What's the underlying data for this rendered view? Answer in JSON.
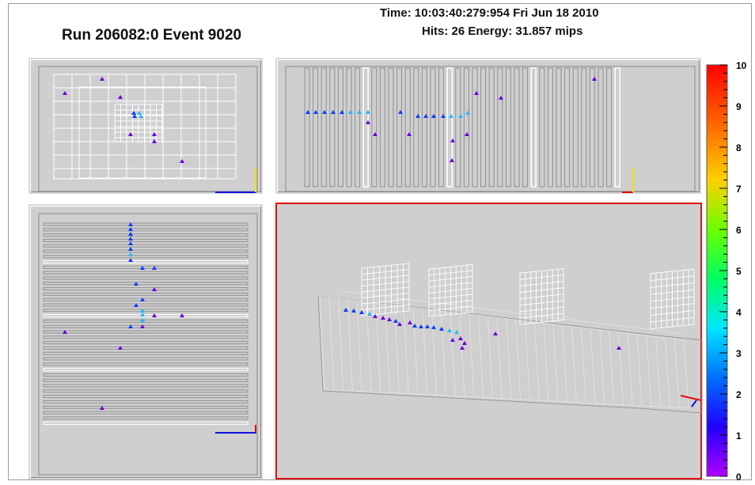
{
  "header": {
    "run_event": "Run 206082:0 Event 9020",
    "time": "Time: 10:03:40:279:954 Fri Jun 18 2010",
    "hits_energy": "Hits: 26  Energy: 31.857 mips"
  },
  "colors": {
    "panel_bg": "#cfcfcf",
    "grid": "#ffffff",
    "selected_border": "#dd1111",
    "hit_low": "#6a00d8",
    "hit_mid": "#0a3cff",
    "hit_high": "#22b8ff",
    "axis_x": "#1010e0",
    "axis_y": "#f2e200",
    "axis_z": "#e01010"
  },
  "views": {
    "front": {
      "hits": [
        [
          127,
          98,
          "violet"
        ],
        [
          80,
          116,
          "violet"
        ],
        [
          150,
          121,
          "violet"
        ],
        [
          167,
          141,
          "blue"
        ],
        [
          174,
          141,
          "cyan"
        ],
        [
          168,
          145,
          "blue"
        ],
        [
          176,
          145,
          "cyan"
        ],
        [
          163,
          168,
          "violet"
        ],
        [
          193,
          168,
          "violet"
        ],
        [
          193,
          177,
          "violet"
        ],
        [
          228,
          202,
          "violet"
        ]
      ]
    },
    "side": {
      "hits": [
        [
          387,
          140,
          "blue"
        ],
        [
          397,
          140,
          "blue"
        ],
        [
          408,
          140,
          "blue"
        ],
        [
          419,
          140,
          "blue"
        ],
        [
          430,
          140,
          "blue"
        ],
        [
          441,
          140,
          "cyan"
        ],
        [
          452,
          140,
          "cyan"
        ],
        [
          463,
          140,
          "cyan"
        ],
        [
          504,
          140,
          "blue"
        ],
        [
          526,
          145,
          "blue"
        ],
        [
          536,
          145,
          "blue"
        ],
        [
          546,
          145,
          "blue"
        ],
        [
          558,
          145,
          "blue"
        ],
        [
          568,
          145,
          "cyan"
        ],
        [
          580,
          145,
          "cyan"
        ],
        [
          589,
          141,
          "cyan"
        ],
        [
          463,
          153,
          "violet"
        ],
        [
          472,
          168,
          "violet"
        ],
        [
          515,
          168,
          "violet"
        ],
        [
          570,
          176,
          "violet"
        ],
        [
          588,
          168,
          "violet"
        ],
        [
          569,
          201,
          "violet"
        ],
        [
          600,
          116,
          "violet"
        ],
        [
          631,
          122,
          "violet"
        ],
        [
          749,
          98,
          "violet"
        ]
      ]
    },
    "top": {
      "hits": [
        [
          163,
          282,
          "blue"
        ],
        [
          163,
          288,
          "blue"
        ],
        [
          163,
          294,
          "blue"
        ],
        [
          163,
          300,
          "blue"
        ],
        [
          163,
          306,
          "blue"
        ],
        [
          163,
          313,
          "blue"
        ],
        [
          163,
          320,
          "cyan"
        ],
        [
          163,
          327,
          "blue"
        ],
        [
          178,
          337,
          "blue"
        ],
        [
          193,
          337,
          "blue"
        ],
        [
          170,
          357,
          "blue"
        ],
        [
          193,
          364,
          "violet"
        ],
        [
          178,
          377,
          "blue"
        ],
        [
          170,
          384,
          "blue"
        ],
        [
          178,
          391,
          "cyan"
        ],
        [
          178,
          396,
          "cyan"
        ],
        [
          193,
          397,
          "violet"
        ],
        [
          228,
          397,
          "violet"
        ],
        [
          178,
          403,
          "cyan"
        ],
        [
          163,
          411,
          "blue"
        ],
        [
          178,
          411,
          "violet"
        ],
        [
          80,
          418,
          "violet"
        ],
        [
          150,
          438,
          "violet"
        ],
        [
          127,
          514,
          "violet"
        ]
      ]
    },
    "threed": {
      "hits": [
        [
          435,
          390,
          "blue"
        ],
        [
          445,
          391,
          "blue"
        ],
        [
          455,
          393,
          "blue"
        ],
        [
          465,
          395,
          "cyan"
        ],
        [
          472,
          398,
          "violet"
        ],
        [
          482,
          400,
          "violet"
        ],
        [
          490,
          402,
          "violet"
        ],
        [
          498,
          404,
          "blue"
        ],
        [
          503,
          408,
          "violet"
        ],
        [
          516,
          406,
          "violet"
        ],
        [
          522,
          410,
          "blue"
        ],
        [
          530,
          411,
          "blue"
        ],
        [
          538,
          411,
          "blue"
        ],
        [
          546,
          412,
          "blue"
        ],
        [
          556,
          414,
          "blue"
        ],
        [
          566,
          416,
          "cyan"
        ],
        [
          575,
          418,
          "cyan"
        ],
        [
          570,
          428,
          "violet"
        ],
        [
          580,
          426,
          "violet"
        ],
        [
          585,
          432,
          "violet"
        ],
        [
          582,
          438,
          "violet"
        ],
        [
          624,
          420,
          "violet"
        ],
        [
          780,
          438,
          "violet"
        ]
      ]
    }
  },
  "color_scale": {
    "labels": [
      "10",
      "9",
      "8",
      "7",
      "6",
      "5",
      "4",
      "3",
      "2",
      "1",
      "0"
    ]
  }
}
